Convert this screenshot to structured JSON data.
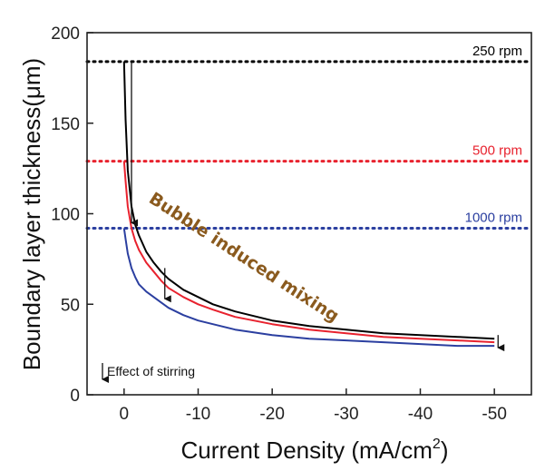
{
  "chart_data": {
    "type": "line",
    "xlabel": "Current Density (mA/cm",
    "xlabel_sup": "2",
    "xlabel_close": ")",
    "ylabel": "Boundary layer thickness(",
    "ylabel_unit": "μm",
    "ylabel_close": ")",
    "xlim": [
      5,
      -55
    ],
    "ylim": [
      0,
      200
    ],
    "x_ticks": [
      0,
      -10,
      -20,
      -30,
      -40,
      -50
    ],
    "x_tick_labels": [
      "0",
      "-10",
      "-20",
      "-30",
      "-40",
      "-50"
    ],
    "y_ticks": [
      0,
      50,
      100,
      150,
      200
    ],
    "y_tick_labels": [
      "0",
      "50",
      "100",
      "150",
      "200"
    ],
    "grid": false,
    "reference_lines": [
      {
        "label": "250 rpm",
        "y": 184,
        "color": "#000000"
      },
      {
        "label": "500 rpm",
        "y": 129,
        "color": "#e8222e"
      },
      {
        "label": "1000 rpm",
        "y": 92,
        "color": "#2b3fa0"
      }
    ],
    "series": [
      {
        "color": "#000000",
        "x": [
          0,
          -0.2,
          -0.5,
          -1,
          -1.5,
          -2,
          -3,
          -4,
          -5,
          -6,
          -8,
          -10,
          -12,
          -15,
          -20,
          -25,
          -30,
          -35,
          -40,
          -45,
          -50
        ],
        "y": [
          184,
          152,
          124,
          104,
          94,
          88,
          79,
          73,
          68,
          64,
          58,
          54,
          50,
          46,
          41,
          38,
          36,
          34,
          33,
          32,
          31
        ]
      },
      {
        "color": "#e8222e",
        "x": [
          0,
          -0.2,
          -0.5,
          -1,
          -1.5,
          -2,
          -3,
          -4,
          -5,
          -6,
          -8,
          -10,
          -12,
          -15,
          -20,
          -25,
          -30,
          -35,
          -40,
          -45,
          -50
        ],
        "y": [
          129,
          118,
          104,
          92,
          85,
          80,
          73,
          68,
          63,
          59,
          54,
          50,
          47,
          43,
          39,
          36,
          34,
          32,
          31,
          30,
          29
        ]
      },
      {
        "color": "#2b3fa0",
        "x": [
          0,
          -0.2,
          -0.5,
          -1,
          -1.5,
          -2,
          -3,
          -4,
          -5,
          -6,
          -8,
          -10,
          -12,
          -15,
          -20,
          -25,
          -30,
          -35,
          -40,
          -45,
          -50
        ],
        "y": [
          92,
          86,
          78,
          70,
          65,
          61,
          57,
          54,
          51,
          48,
          44,
          41,
          39,
          36,
          33,
          31,
          30,
          29,
          28,
          27,
          27
        ]
      }
    ],
    "stirring_arrows": [
      {
        "x": -1,
        "y_from": 184,
        "y_to": 92
      },
      {
        "x": -50.5,
        "y_from": 33,
        "y_to": 23
      }
    ],
    "mixing_arrow": {
      "x": -5.5,
      "y_from": 70,
      "y_to": 50
    },
    "annotations": {
      "curve_text": "Bubble induced mixing",
      "curve_text_color": "#8a5a1e",
      "stirring_note": "Effect of stirring"
    }
  }
}
